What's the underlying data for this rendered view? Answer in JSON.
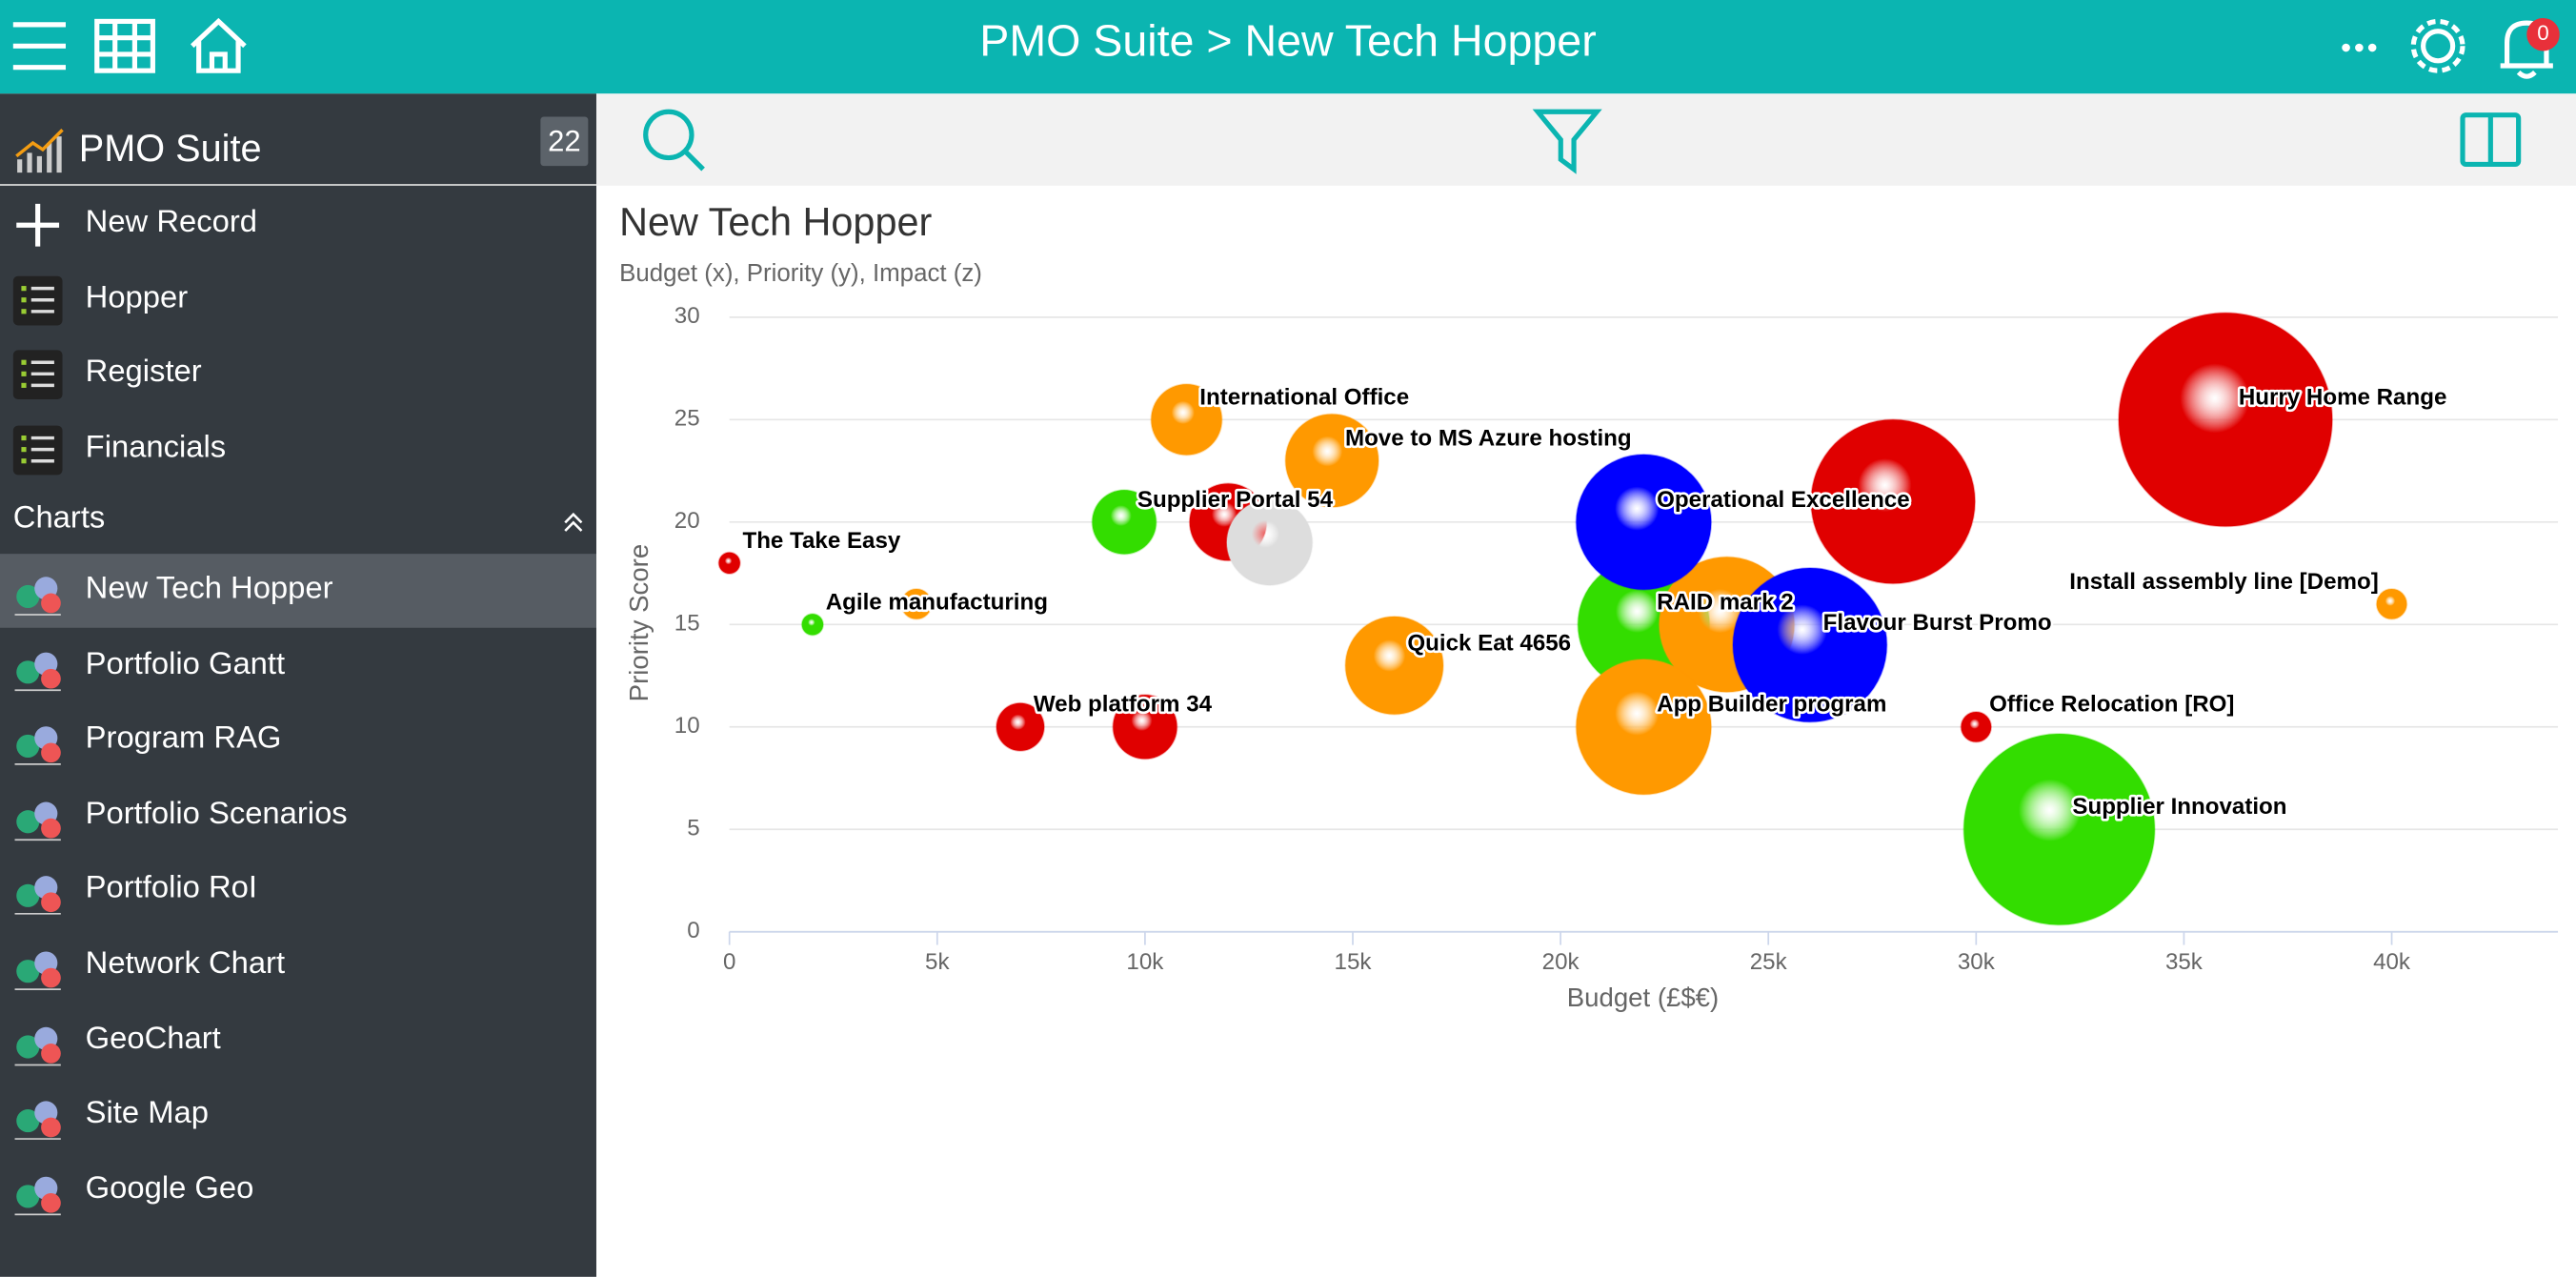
{
  "header": {
    "title": "PMO Suite > New Tech Hopper",
    "notifications": "0"
  },
  "sidebar": {
    "app": "PMO Suite",
    "badge": "22",
    "items": [
      "New Record",
      "Hopper",
      "Register",
      "Financials"
    ],
    "section": "Charts",
    "charts": [
      "New Tech Hopper",
      "Portfolio Gantt",
      "Program RAG",
      "Portfolio Scenarios",
      "Portfolio RoI",
      "Network Chart",
      "GeoChart",
      "Site Map",
      "Google Geo"
    ]
  },
  "chart_data": {
    "type": "bubble",
    "title": "New Tech Hopper",
    "subtitle": "Budget (x), Priority (y), Impact (z)",
    "x_label": "Budget (£$€)",
    "y_label": "Priority Score",
    "xlim": [
      0,
      44000
    ],
    "ylim": [
      0,
      30
    ],
    "xticks": [
      0,
      {
        "value": 5000,
        "label": "5k"
      },
      {
        "value": 10000,
        "label": "10k"
      },
      {
        "value": 15000,
        "label": "15k"
      },
      {
        "value": 20000,
        "label": "20k"
      },
      {
        "value": 25000,
        "label": "25k"
      },
      {
        "value": 30000,
        "label": "30k"
      },
      {
        "value": 35000,
        "label": "35k"
      },
      {
        "value": 40000,
        "label": "40k"
      }
    ],
    "yticks": [
      0,
      5,
      10,
      15,
      20,
      25,
      30
    ],
    "grid": true,
    "labels": [
      "The Take Easy",
      "Agile manufacturing",
      null,
      "Web platform 34",
      null,
      "International Office",
      "Supplier Portal 54",
      null,
      null,
      "Move to MS Azure hosting",
      "Quick Eat 4656",
      "RAID mark 2",
      null,
      "Operational Excellence",
      "App Builder program",
      "Flavour Burst Promo",
      null,
      "Hurry Home Range",
      "Install assembly line [Demo]",
      "Office Relocation [RO]",
      "Supplier Innovation"
    ],
    "x": [
      0,
      2000,
      4500,
      7000,
      10000,
      11000,
      9500,
      12000,
      13000,
      14500,
      16000,
      22000,
      24000,
      22000,
      22000,
      26000,
      28000,
      36000,
      40000,
      30000,
      32000
    ],
    "y": [
      18,
      15,
      16,
      10,
      10,
      25,
      20,
      20,
      19,
      23,
      13,
      15,
      15,
      20,
      10,
      14,
      21,
      25,
      16,
      10,
      5
    ],
    "z": [
      1,
      1,
      2,
      5,
      9,
      11,
      9,
      13,
      16,
      19,
      21,
      38,
      40,
      40,
      40,
      52,
      59,
      100,
      2,
      2,
      80
    ],
    "colors": [
      "#e00000",
      "#33dd00",
      "#ff9900",
      "#e00000",
      "#e00000",
      "#ff9900",
      "#33dd00",
      "#e00000",
      "#dddddd",
      "#ff9900",
      "#ff9900",
      "#33dd00",
      "#ff9900",
      "#0000ff",
      "#ff9900",
      "#0000ff",
      "#e00000",
      "#e00000",
      "#ff9900",
      "#e00000",
      "#33dd00"
    ]
  }
}
